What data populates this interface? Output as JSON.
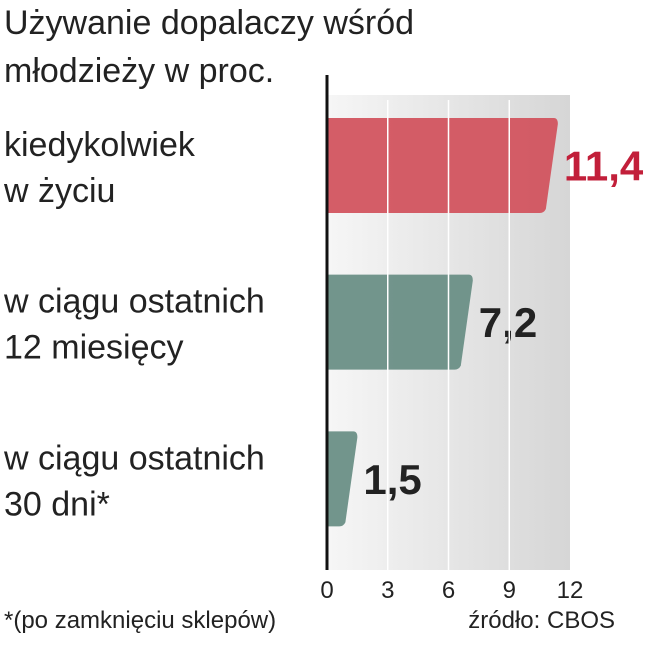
{
  "chart_data": {
    "type": "hbar",
    "title": [
      "Używanie dopalaczy wśród",
      "młodzieży w proc."
    ],
    "categories": [
      [
        "kiedykolwiek",
        "w życiu"
      ],
      [
        "w ciągu ostatnich",
        "12 miesięcy"
      ],
      [
        "w ciągu ostatnich",
        "30 dni*"
      ]
    ],
    "values": [
      11.4,
      7.2,
      1.5
    ],
    "value_labels": [
      "11,4",
      "7,2",
      "1,5"
    ],
    "colors": [
      "#d2545f",
      "#6a8f86",
      "#6a8f86"
    ],
    "label_colors": [
      "#c21f3a",
      "#222222",
      "#222222"
    ],
    "xlim": [
      0,
      12
    ],
    "xticks": [
      0,
      3,
      6,
      9,
      12
    ],
    "grid": true,
    "footnote": "*(po zamknięciu sklepów)",
    "source": "źródło: CBOS"
  }
}
